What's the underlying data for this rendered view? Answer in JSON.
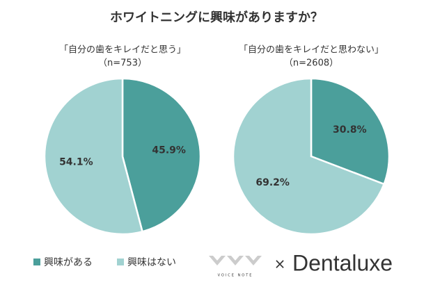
{
  "title": "ホワイトニングに興味がありますか？",
  "chart_data": [
    {
      "type": "pie",
      "title": "「自分の歯をキレイだと思う」",
      "subtitle": "（n=753）",
      "categories": [
        "興味がある",
        "興味はない"
      ],
      "values": [
        45.9,
        54.1
      ],
      "value_labels": [
        "45.9%",
        "54.1%"
      ],
      "colors": [
        "#4b9f9b",
        "#a1d2d1"
      ]
    },
    {
      "type": "pie",
      "title": "「自分の歯をキレイだと思わない」",
      "subtitle": "（n=2608）",
      "categories": [
        "興味がある",
        "興味はない"
      ],
      "values": [
        30.8,
        69.2
      ],
      "value_labels": [
        "30.8%",
        "69.2%"
      ],
      "colors": [
        "#4b9f9b",
        "#a1d2d1"
      ]
    }
  ],
  "logos": {
    "voice_note": "VOICE NOTE",
    "times": "×",
    "brand": "Dentaluxe"
  }
}
